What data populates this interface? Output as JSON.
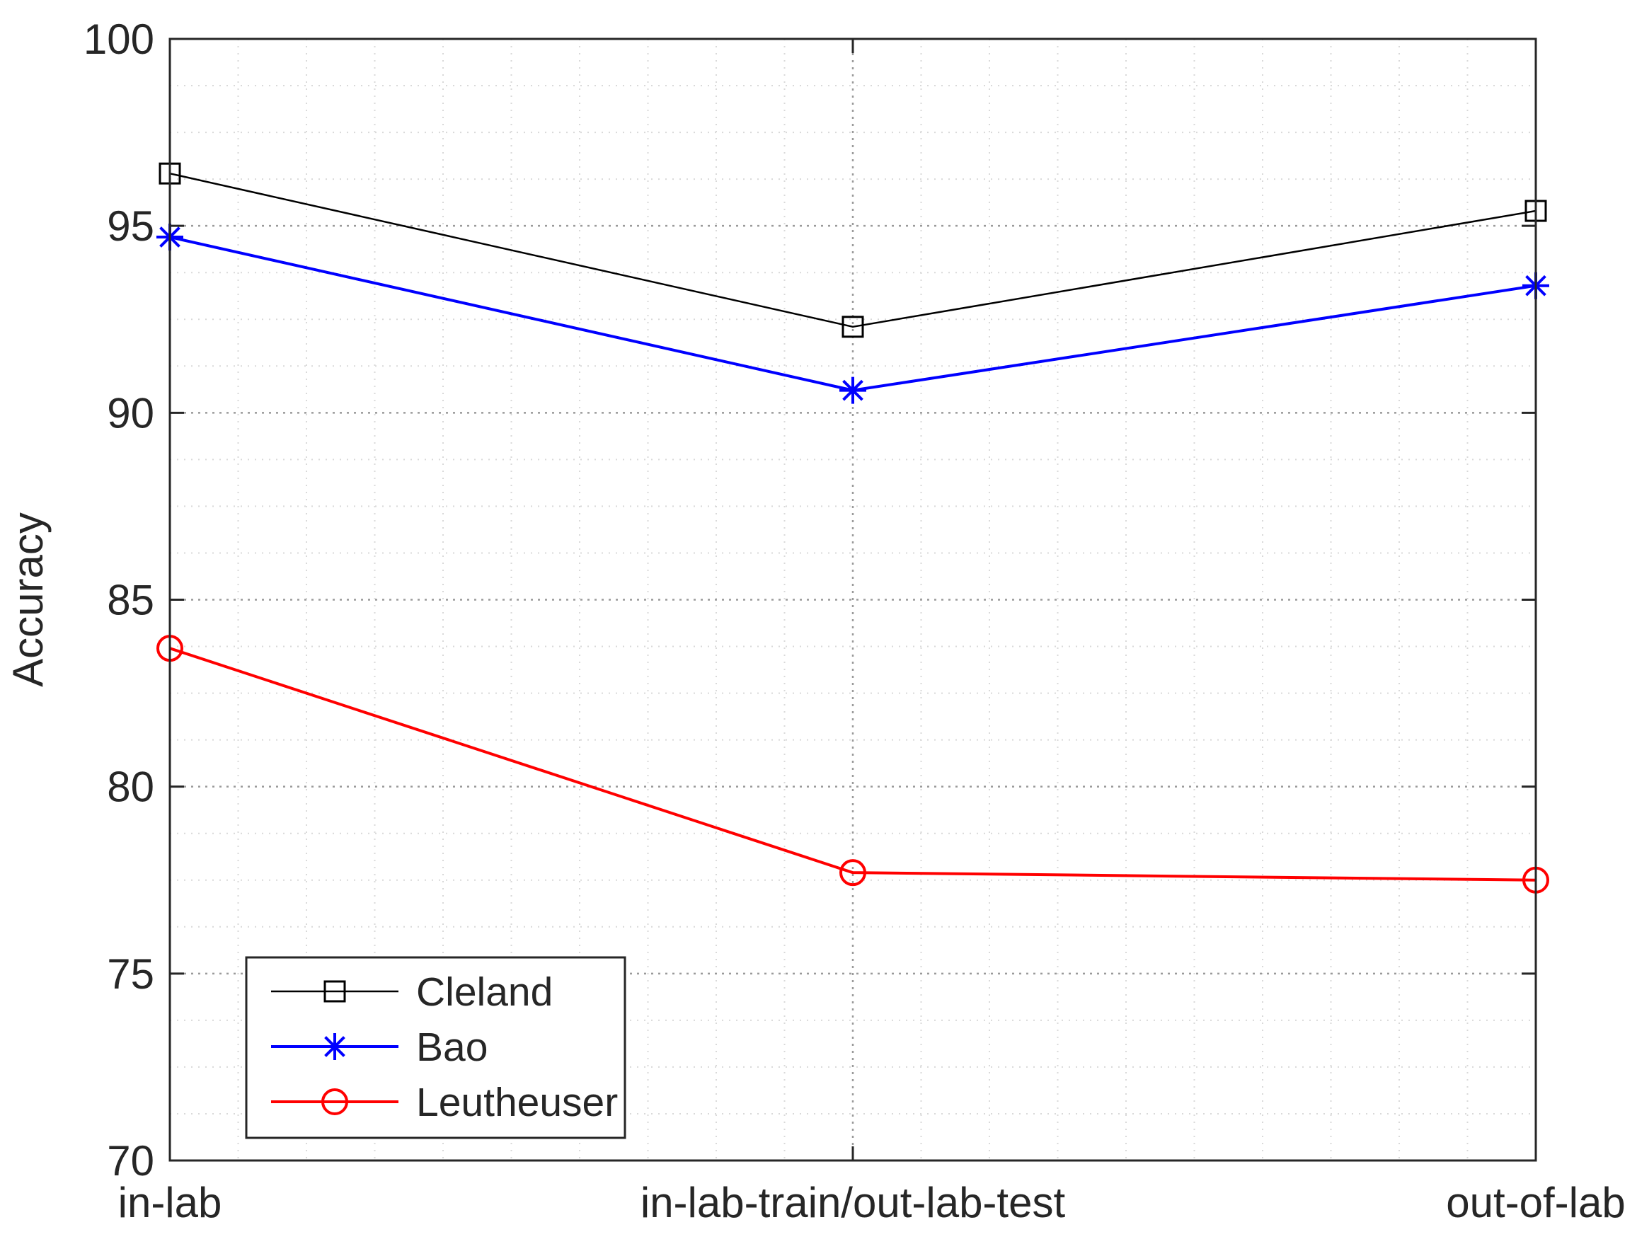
{
  "chart_data": {
    "type": "line",
    "title": "",
    "xlabel": "",
    "ylabel": "Accuracy",
    "categories": [
      "in-lab",
      "in-lab-train/out-lab-test",
      "out-of-lab"
    ],
    "ylim": [
      70,
      100
    ],
    "yticks": [
      70,
      75,
      80,
      85,
      90,
      95,
      100
    ],
    "grid": true,
    "minor_grid": true,
    "legend_position": "bottom-left",
    "series": [
      {
        "name": "Cleland",
        "values": [
          96.4,
          92.3,
          95.4
        ],
        "color": "#000000",
        "marker": "square"
      },
      {
        "name": "Bao",
        "values": [
          94.7,
          90.6,
          93.4
        ],
        "color": "#0000ff",
        "marker": "asterisk"
      },
      {
        "name": "Leutheuser",
        "values": [
          83.7,
          77.7,
          77.5
        ],
        "color": "#ff0000",
        "marker": "circle"
      }
    ]
  }
}
